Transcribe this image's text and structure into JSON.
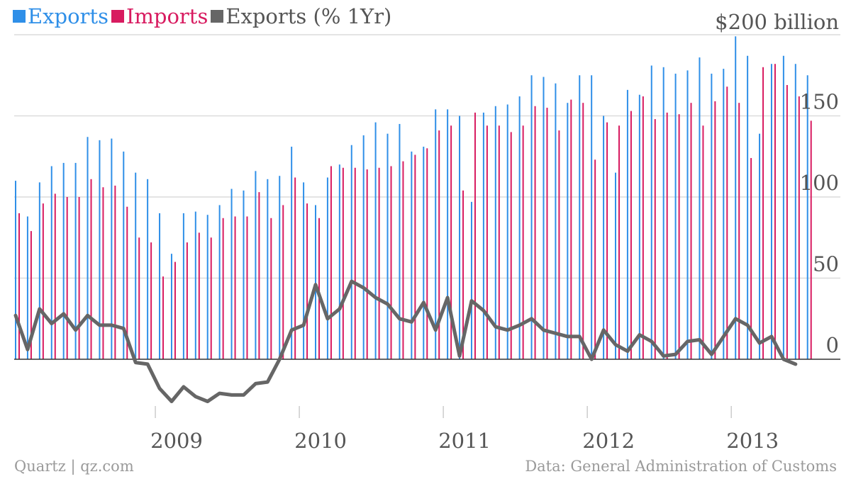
{
  "chart_data": {
    "type": "bar",
    "title": "",
    "y_unit_label": "$200 billion",
    "yticks": [
      0,
      50,
      100,
      150
    ],
    "ylim": [
      -27,
      200
    ],
    "xticks": [
      "2009",
      "2010",
      "2011",
      "2012",
      "2013"
    ],
    "x_start": "2008-01",
    "x_tick_positions": [
      "2009-01",
      "2010-01",
      "2011-01",
      "2012-01",
      "2013-01"
    ],
    "grid": true,
    "legend": "top-left",
    "colors": {
      "exports": "#2f8fe8",
      "imports": "#d81b60",
      "yoy": "#666666",
      "grid": "#dcdcdc",
      "zero": "#333333"
    },
    "series": [
      {
        "name": "Exports",
        "type": "bar",
        "values": [
          110,
          88,
          109,
          119,
          121,
          121,
          137,
          135,
          136,
          128,
          115,
          111,
          90,
          65,
          90,
          91,
          89,
          95,
          105,
          104,
          116,
          111,
          113,
          131,
          109,
          95,
          112,
          120,
          132,
          138,
          146,
          139,
          145,
          128,
          131,
          154,
          154,
          150,
          97,
          152,
          156,
          157,
          162,
          175,
          174,
          170,
          158,
          175,
          175,
          150,
          115,
          166,
          163,
          181,
          180,
          176,
          178,
          186,
          176,
          179,
          199,
          187,
          139,
          182,
          187,
          182,
          175
        ],
        "_": ""
      },
      {
        "name": "Imports",
        "type": "bar",
        "values": [
          90,
          79,
          96,
          102,
          100,
          100,
          111,
          106,
          107,
          94,
          75,
          72,
          51,
          60,
          72,
          78,
          75,
          87,
          88,
          88,
          103,
          87,
          95,
          112,
          96,
          87,
          119,
          118,
          118,
          117,
          118,
          119,
          122,
          126,
          130,
          141,
          144,
          104,
          152,
          144,
          144,
          140,
          144,
          156,
          155,
          141,
          160,
          158,
          123,
          146,
          144,
          153,
          162,
          148,
          152,
          151,
          158,
          144,
          159,
          168,
          158,
          124,
          180,
          182,
          169,
          162,
          147
        ],
        "_": ""
      },
      {
        "name": "Exports (% 1Yr)",
        "type": "line",
        "values": [
          27,
          6,
          31,
          22,
          28,
          18,
          27,
          21,
          21,
          19,
          -2,
          -3,
          -18,
          -26,
          -17,
          -23,
          -26,
          -21,
          -22,
          -22,
          -15,
          -14,
          0,
          18,
          21,
          46,
          25,
          31,
          48,
          44,
          38,
          34,
          25,
          23,
          35,
          18,
          38,
          2,
          36,
          30,
          20,
          18,
          21,
          25,
          18,
          16,
          14,
          14,
          0,
          18,
          9,
          5,
          15,
          11,
          2,
          3,
          11,
          12,
          3,
          14,
          25,
          21,
          10,
          14,
          0,
          -3,
          null
        ],
        "_": ""
      }
    ]
  },
  "legend": [
    {
      "label": "Exports",
      "color": "#2f8fe8"
    },
    {
      "label": "Imports",
      "color": "#d81b60"
    },
    {
      "label": "Exports (% 1Yr)",
      "color": "#666666"
    }
  ],
  "footer": {
    "credit": "Quartz | qz.com",
    "source": "Data: General Administration of Customs"
  }
}
